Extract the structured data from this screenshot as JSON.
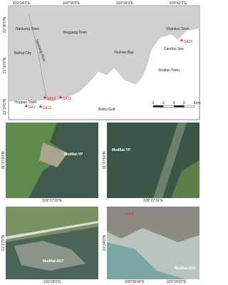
{
  "main_map": {
    "lon_labels": [
      "109°24'0\"E",
      "109°30'0\"E",
      "109°36'0\"E",
      "109°42'0\"E"
    ],
    "lat_labels": [
      "21°36'0\"N",
      "21°30'0\"N",
      "21°24'0\"N"
    ],
    "places": [
      "Nankang Town",
      "Xinggang Town",
      "Beihai City",
      "Nankang River",
      "Tieshan Bay",
      "Dandou Sea",
      "Shankou Town",
      "Shatian Town",
      "Yingpan Town",
      "Beibu Gulf"
    ],
    "sites": [
      "SA26",
      "SA15",
      "SA16",
      "SA1",
      "SA12"
    ],
    "scale": {
      "ticks": [
        0,
        2,
        4,
        6,
        8
      ],
      "unit": "km"
    }
  },
  "panels": [
    {
      "lon_labels": [
        "109°27'10\"E"
      ],
      "lat_labels": [
        "21°27'20\"N"
      ],
      "labels": [
        "Mudflat-YP"
      ]
    },
    {
      "lon_labels": [
        "109°27'16\"E"
      ],
      "lat_labels": [
        "21°27'50\"N"
      ],
      "labels": [
        "Mudflat-YP"
      ]
    },
    {
      "lon_labels": [
        "109°28'0\"E"
      ],
      "lat_labels": [
        "21°27'0\"N"
      ],
      "labels": [
        "Mudflat-DST"
      ]
    },
    {
      "lon_labels": [
        "109°39'44\"E",
        "109°39'52\"E"
      ],
      "lat_labels": [
        "21°34'0\"N"
      ],
      "labels": [
        "SA26",
        "Mudflat-DDS"
      ]
    }
  ]
}
